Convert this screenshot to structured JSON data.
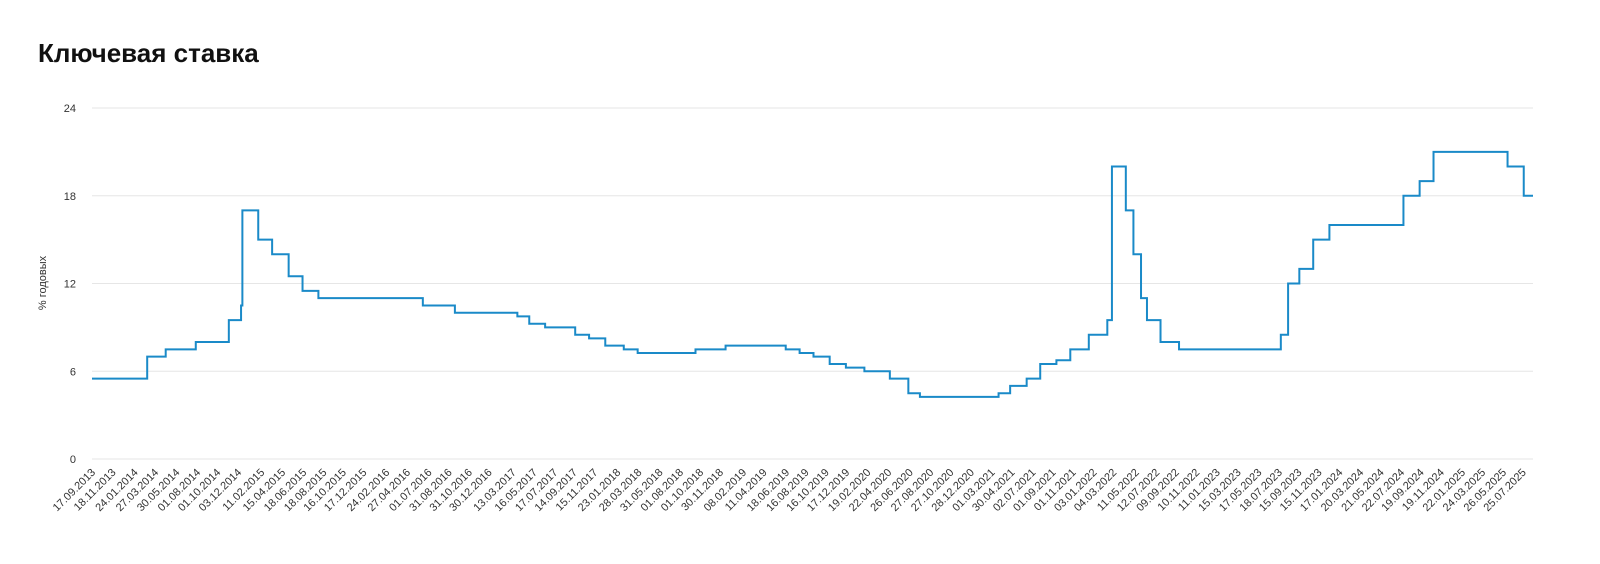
{
  "chart_data": {
    "type": "line",
    "step": true,
    "title": "Ключевая ставка",
    "y_label": "% годовых",
    "color": "#1a8ac8",
    "grid": true,
    "x": [
      "17.09.2013",
      "03.03.2014",
      "28.04.2014",
      "28.07.2014",
      "05.11.2014",
      "12.12.2014",
      "16.12.2014",
      "02.02.2015",
      "16.03.2015",
      "05.05.2015",
      "16.06.2015",
      "03.08.2015",
      "14.06.2016",
      "19.09.2016",
      "27.03.2017",
      "02.05.2017",
      "19.06.2017",
      "18.09.2017",
      "30.10.2017",
      "18.12.2017",
      "12.02.2018",
      "26.03.2018",
      "17.09.2018",
      "17.12.2018",
      "17.06.2019",
      "29.07.2019",
      "09.09.2019",
      "28.10.2019",
      "16.12.2019",
      "10.02.2020",
      "27.04.2020",
      "22.06.2020",
      "27.07.2020",
      "22.03.2021",
      "26.04.2021",
      "15.06.2021",
      "26.07.2021",
      "13.09.2021",
      "25.10.2021",
      "20.12.2021",
      "14.02.2022",
      "28.02.2022",
      "11.04.2022",
      "04.05.2022",
      "27.05.2022",
      "14.06.2022",
      "25.07.2022",
      "19.09.2022",
      "24.07.2023",
      "15.08.2023",
      "18.09.2023",
      "30.10.2023",
      "18.12.2023",
      "29.07.2024",
      "16.09.2024",
      "28.10.2024",
      "09.06.2025",
      "28.07.2025"
    ],
    "values": [
      5.5,
      7,
      7.5,
      8,
      9.5,
      10.5,
      17,
      15,
      14,
      12.5,
      11.5,
      11,
      10.5,
      10,
      9.75,
      9.25,
      9,
      8.5,
      8.25,
      7.75,
      7.5,
      7.25,
      7.5,
      7.75,
      7.5,
      7.25,
      7,
      6.5,
      6.25,
      6,
      5.5,
      4.5,
      4.25,
      4.5,
      5,
      5.5,
      6.5,
      6.75,
      7.5,
      8.5,
      9.5,
      20,
      17,
      14,
      11,
      9.5,
      8,
      7.5,
      8.5,
      12,
      13,
      15,
      16,
      18,
      19,
      21,
      20,
      18
    ],
    "xlim": [
      "17.09.2013",
      "25.08.2025"
    ],
    "xticks": [
      "17.09.2013",
      "18.11.2013",
      "24.01.2014",
      "27.03.2014",
      "30.05.2014",
      "01.08.2014",
      "01.10.2014",
      "03.12.2014",
      "11.02.2015",
      "15.04.2015",
      "18.06.2015",
      "18.08.2015",
      "16.10.2015",
      "17.12.2015",
      "24.02.2016",
      "27.04.2016",
      "01.07.2016",
      "31.08.2016",
      "31.10.2016",
      "30.12.2016",
      "13.03.2017",
      "16.05.2017",
      "17.07.2017",
      "14.09.2017",
      "15.11.2017",
      "23.01.2018",
      "28.03.2018",
      "31.05.2018",
      "01.08.2018",
      "01.10.2018",
      "30.11.2018",
      "08.02.2019",
      "11.04.2019",
      "18.06.2019",
      "16.08.2019",
      "16.10.2019",
      "17.12.2019",
      "19.02.2020",
      "22.04.2020",
      "26.06.2020",
      "27.08.2020",
      "27.10.2020",
      "28.12.2020",
      "01.03.2021",
      "30.04.2021",
      "02.07.2021",
      "01.09.2021",
      "01.11.2021",
      "03.01.2022",
      "04.03.2022",
      "11.05.2022",
      "12.07.2022",
      "09.09.2022",
      "10.11.2022",
      "11.01.2023",
      "15.03.2023",
      "17.05.2023",
      "18.07.2023",
      "15.09.2023",
      "15.11.2023",
      "17.01.2024",
      "20.03.2024",
      "21.05.2024",
      "22.07.2024",
      "19.09.2024",
      "19.11.2024",
      "22.01.2025",
      "24.03.2025",
      "26.05.2025",
      "25.07.2025"
    ],
    "ylim": [
      0,
      24
    ],
    "yticks": [
      0,
      6,
      12,
      18,
      24
    ]
  }
}
